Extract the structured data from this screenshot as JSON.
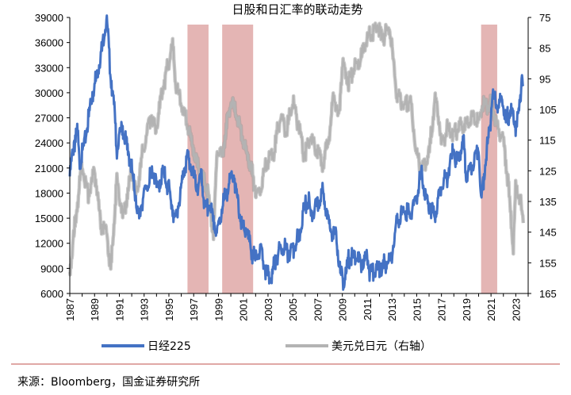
{
  "chart_data": {
    "type": "line",
    "title": "日股和日汇率的联动走势",
    "x_ticks": [
      "1987",
      "1989",
      "1991",
      "1993",
      "1995",
      "1997",
      "1999",
      "2001",
      "2003",
      "2005",
      "2007",
      "2009",
      "2011",
      "2013",
      "2015",
      "2017",
      "2019",
      "2021",
      "2023"
    ],
    "y_left": {
      "ticks": [
        6000,
        9000,
        12000,
        15000,
        18000,
        21000,
        24000,
        27000,
        30000,
        33000,
        36000,
        39000
      ],
      "lim": [
        6000,
        39000
      ]
    },
    "y_right": {
      "ticks": [
        75,
        85,
        95,
        105,
        115,
        125,
        135,
        145,
        155,
        165
      ],
      "lim": [
        75,
        165
      ],
      "inverted": true,
      "label_side": "right"
    },
    "shaded_periods": [
      [
        1996.5,
        1998.2
      ],
      [
        1999.3,
        2001.8
      ],
      [
        2020.2,
        2021.5
      ]
    ],
    "series": [
      {
        "name": "日经225",
        "axis": "left",
        "color": "#4472c4",
        "points": [
          [
            1987.0,
            20000
          ],
          [
            1987.3,
            23500
          ],
          [
            1987.6,
            25500
          ],
          [
            1987.83,
            21500
          ],
          [
            1988.2,
            24000
          ],
          [
            1988.6,
            28000
          ],
          [
            1989.0,
            31000
          ],
          [
            1989.5,
            34500
          ],
          [
            1989.99,
            38900
          ],
          [
            1990.3,
            32000
          ],
          [
            1990.6,
            28000
          ],
          [
            1990.8,
            23000
          ],
          [
            1991.2,
            26000
          ],
          [
            1991.6,
            23500
          ],
          [
            1992.0,
            21000
          ],
          [
            1992.3,
            17500
          ],
          [
            1992.6,
            15000
          ],
          [
            1992.9,
            17500
          ],
          [
            1993.3,
            19000
          ],
          [
            1993.7,
            20500
          ],
          [
            1994.1,
            18500
          ],
          [
            1994.5,
            20500
          ],
          [
            1995.0,
            18500
          ],
          [
            1995.5,
            14500
          ],
          [
            1995.8,
            17000
          ],
          [
            1996.2,
            20500
          ],
          [
            1996.5,
            22500
          ],
          [
            1996.9,
            20500
          ],
          [
            1997.3,
            18500
          ],
          [
            1997.6,
            20000
          ],
          [
            1997.9,
            16000
          ],
          [
            1998.3,
            16500
          ],
          [
            1998.8,
            13500
          ],
          [
            1999.0,
            14000
          ],
          [
            1999.5,
            17500
          ],
          [
            2000.2,
            20500
          ],
          [
            2000.6,
            16500
          ],
          [
            2000.9,
            14000
          ],
          [
            2001.3,
            13500
          ],
          [
            2001.7,
            11000
          ],
          [
            2002.0,
            10000
          ],
          [
            2002.4,
            11500
          ],
          [
            2002.8,
            8500
          ],
          [
            2003.3,
            7800
          ],
          [
            2003.7,
            10500
          ],
          [
            2004.2,
            11500
          ],
          [
            2004.6,
            11000
          ],
          [
            2005.0,
            11500
          ],
          [
            2005.5,
            12500
          ],
          [
            2005.9,
            16000
          ],
          [
            2006.3,
            17500
          ],
          [
            2006.5,
            15000
          ],
          [
            2006.9,
            16500
          ],
          [
            2007.4,
            18000
          ],
          [
            2007.7,
            16500
          ],
          [
            2008.0,
            13500
          ],
          [
            2008.5,
            13000
          ],
          [
            2008.8,
            8500
          ],
          [
            2009.1,
            7300
          ],
          [
            2009.5,
            10000
          ],
          [
            2010.0,
            10500
          ],
          [
            2010.5,
            9500
          ],
          [
            2011.0,
            10500
          ],
          [
            2011.2,
            8800
          ],
          [
            2011.6,
            8500
          ],
          [
            2012.0,
            9000
          ],
          [
            2012.9,
            10000
          ],
          [
            2013.4,
            14500
          ],
          [
            2013.99,
            16000
          ],
          [
            2014.5,
            15500
          ],
          [
            2014.99,
            17500
          ],
          [
            2015.4,
            20500
          ],
          [
            2015.7,
            17500
          ],
          [
            2016.1,
            16500
          ],
          [
            2016.5,
            15500
          ],
          [
            2016.99,
            19000
          ],
          [
            2017.5,
            20000
          ],
          [
            2017.99,
            23500
          ],
          [
            2018.2,
            21500
          ],
          [
            2018.8,
            24000
          ],
          [
            2018.99,
            20000
          ],
          [
            2019.5,
            21500
          ],
          [
            2019.99,
            23500
          ],
          [
            2020.2,
            17000
          ],
          [
            2020.6,
            22500
          ],
          [
            2020.99,
            27000
          ],
          [
            2021.1,
            30000
          ],
          [
            2021.6,
            28000
          ],
          [
            2021.9,
            29500
          ],
          [
            2022.2,
            26500
          ],
          [
            2022.6,
            28000
          ],
          [
            2022.99,
            26000
          ],
          [
            2023.3,
            28000
          ],
          [
            2023.5,
            32500
          ],
          [
            2023.6,
            31000
          ]
        ]
      },
      {
        "name": "美元兑日元（右轴）",
        "axis": "right",
        "color": "#b3b3b3",
        "points": [
          [
            1987.0,
            158
          ],
          [
            1987.4,
            143
          ],
          [
            1987.99,
            123
          ],
          [
            1988.5,
            133
          ],
          [
            1988.99,
            125
          ],
          [
            1989.5,
            143
          ],
          [
            1990.0,
            145
          ],
          [
            1990.3,
            158
          ],
          [
            1990.8,
            128
          ],
          [
            1991.3,
            140
          ],
          [
            1991.99,
            125
          ],
          [
            1992.4,
            133
          ],
          [
            1992.8,
            121
          ],
          [
            1993.5,
            107
          ],
          [
            1993.99,
            111
          ],
          [
            1994.5,
            98
          ],
          [
            1995.3,
            84
          ],
          [
            1995.6,
            98
          ],
          [
            1995.99,
            103
          ],
          [
            1996.5,
            110
          ],
          [
            1997.0,
            118
          ],
          [
            1997.4,
            124
          ],
          [
            1997.8,
            127
          ],
          [
            1998.2,
            133
          ],
          [
            1998.6,
            146
          ],
          [
            1998.9,
            118
          ],
          [
            1999.3,
            120
          ],
          [
            1999.99,
            102
          ],
          [
            2000.5,
            107
          ],
          [
            2000.99,
            115
          ],
          [
            2001.5,
            122
          ],
          [
            2001.99,
            131
          ],
          [
            2002.3,
            133
          ],
          [
            2002.8,
            123
          ],
          [
            2003.5,
            118
          ],
          [
            2003.99,
            107
          ],
          [
            2004.5,
            112
          ],
          [
            2004.99,
            103
          ],
          [
            2005.5,
            110
          ],
          [
            2005.9,
            120
          ],
          [
            2006.5,
            114
          ],
          [
            2006.99,
            119
          ],
          [
            2007.5,
            123
          ],
          [
            2007.99,
            112
          ],
          [
            2008.3,
            100
          ],
          [
            2008.7,
            108
          ],
          [
            2008.99,
            90
          ],
          [
            2009.5,
            96
          ],
          [
            2009.99,
            91
          ],
          [
            2010.5,
            88
          ],
          [
            2010.99,
            82
          ],
          [
            2011.5,
            80
          ],
          [
            2011.8,
            77
          ],
          [
            2012.2,
            82
          ],
          [
            2012.8,
            78
          ],
          [
            2012.99,
            85
          ],
          [
            2013.4,
            100
          ],
          [
            2013.99,
            104
          ],
          [
            2014.5,
            102
          ],
          [
            2014.99,
            120
          ],
          [
            2015.5,
            124
          ],
          [
            2015.99,
            120
          ],
          [
            2016.5,
            102
          ],
          [
            2016.8,
            108
          ],
          [
            2016.99,
            117
          ],
          [
            2017.5,
            111
          ],
          [
            2017.99,
            113
          ],
          [
            2018.5,
            110
          ],
          [
            2018.99,
            110
          ],
          [
            2019.5,
            108
          ],
          [
            2019.99,
            109
          ],
          [
            2020.3,
            104
          ],
          [
            2020.8,
            104
          ],
          [
            2020.99,
            103
          ],
          [
            2021.5,
            110
          ],
          [
            2021.99,
            115
          ],
          [
            2022.3,
            125
          ],
          [
            2022.8,
            150
          ],
          [
            2022.99,
            131
          ],
          [
            2023.3,
            133
          ],
          [
            2023.6,
            142
          ]
        ]
      }
    ],
    "legend_position": "bottom"
  },
  "legend": {
    "nikkei_label": "日经225",
    "usdjpy_label": "美元兑日元（右轴）"
  },
  "source_note": "来源：Bloomberg，国金证券研究所",
  "colors": {
    "nikkei": "#4472c4",
    "usdjpy": "#b3b3b3",
    "shade": "#d99694",
    "divider": "#c0504d"
  }
}
